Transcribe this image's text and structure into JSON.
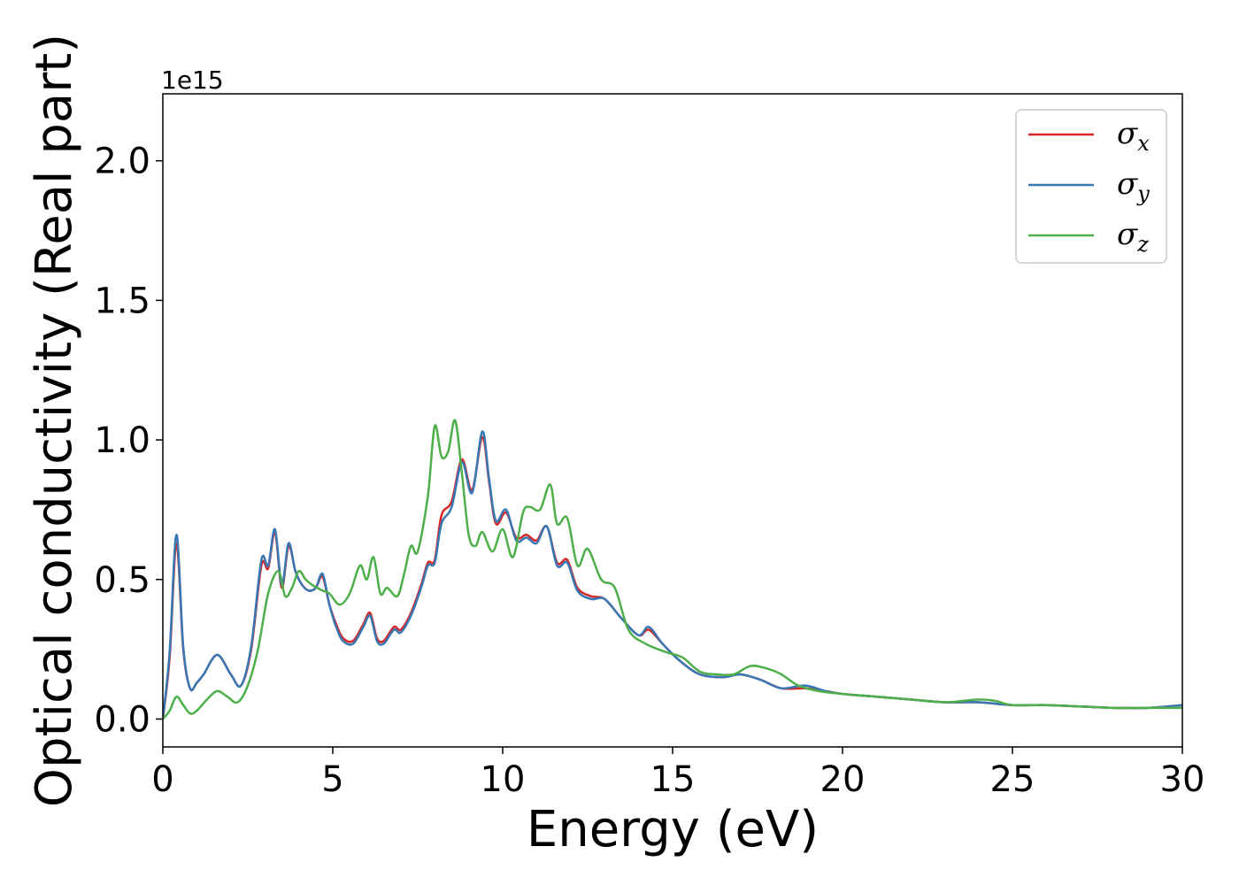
{
  "chart_data": {
    "type": "line",
    "title": "",
    "xlabel": "Energy (eV)",
    "ylabel": "Optical conductivity (Real part)",
    "y_offset_text": "1e15",
    "xlim": [
      0,
      30
    ],
    "ylim": [
      -0.1,
      2.24
    ],
    "xticks": [
      0,
      5,
      10,
      15,
      20,
      25,
      30
    ],
    "xtick_labels": [
      "0",
      "5",
      "10",
      "15",
      "20",
      "25",
      "30"
    ],
    "yticks": [
      0.0,
      0.5,
      1.0,
      1.5,
      2.0
    ],
    "ytick_labels": [
      "0.0",
      "0.5",
      "1.0",
      "1.5",
      "2.0"
    ],
    "grid": false,
    "legend_position": "top-right",
    "series": [
      {
        "name": "σx",
        "legend_symbol": "σ",
        "legend_subscript": "x",
        "color": "#d62728",
        "x": [
          0,
          0.2,
          0.4,
          0.6,
          0.8,
          1.0,
          1.2,
          1.6,
          2.0,
          2.3,
          2.6,
          2.9,
          3.1,
          3.3,
          3.5,
          3.7,
          3.9,
          4.1,
          4.3,
          4.5,
          4.7,
          4.9,
          5.1,
          5.3,
          5.6,
          5.9,
          6.1,
          6.3,
          6.5,
          6.8,
          7.0,
          7.3,
          7.6,
          7.8,
          8.0,
          8.2,
          8.5,
          8.8,
          9.1,
          9.4,
          9.6,
          9.8,
          10.1,
          10.4,
          10.7,
          11.0,
          11.3,
          11.6,
          11.9,
          12.2,
          12.6,
          13.0,
          13.5,
          14.0,
          14.3,
          14.7,
          15.2,
          15.8,
          16.5,
          17.0,
          17.6,
          18.2,
          18.9,
          19.5,
          20.0,
          21.0,
          22.0,
          23.0,
          24.0,
          25.0,
          26.0,
          27.0,
          28.0,
          29.0,
          30.0
        ],
        "y": [
          0.0,
          0.22,
          0.63,
          0.25,
          0.11,
          0.13,
          0.16,
          0.23,
          0.16,
          0.12,
          0.25,
          0.55,
          0.54,
          0.67,
          0.47,
          0.62,
          0.53,
          0.48,
          0.46,
          0.47,
          0.51,
          0.41,
          0.34,
          0.29,
          0.28,
          0.34,
          0.38,
          0.29,
          0.28,
          0.33,
          0.32,
          0.38,
          0.48,
          0.56,
          0.57,
          0.73,
          0.78,
          0.93,
          0.82,
          1.01,
          0.85,
          0.7,
          0.74,
          0.65,
          0.66,
          0.64,
          0.69,
          0.56,
          0.57,
          0.47,
          0.44,
          0.43,
          0.36,
          0.3,
          0.32,
          0.27,
          0.21,
          0.16,
          0.15,
          0.16,
          0.14,
          0.11,
          0.11,
          0.1,
          0.09,
          0.08,
          0.07,
          0.06,
          0.06,
          0.05,
          0.05,
          0.045,
          0.04,
          0.04,
          0.05
        ]
      },
      {
        "name": "σy",
        "legend_symbol": "σ",
        "legend_subscript": "y",
        "color": "#3777b4",
        "x": [
          0,
          0.2,
          0.4,
          0.6,
          0.8,
          1.0,
          1.2,
          1.6,
          2.0,
          2.3,
          2.6,
          2.9,
          3.1,
          3.3,
          3.5,
          3.7,
          3.9,
          4.1,
          4.3,
          4.5,
          4.7,
          4.9,
          5.1,
          5.3,
          5.6,
          5.9,
          6.1,
          6.3,
          6.5,
          6.8,
          7.0,
          7.3,
          7.6,
          7.8,
          8.0,
          8.2,
          8.5,
          8.8,
          9.1,
          9.4,
          9.6,
          9.8,
          10.1,
          10.4,
          10.7,
          11.0,
          11.3,
          11.6,
          11.9,
          12.2,
          12.6,
          13.0,
          13.5,
          14.0,
          14.3,
          14.7,
          15.2,
          15.8,
          16.5,
          17.0,
          17.6,
          18.2,
          18.9,
          19.5,
          20.0,
          21.0,
          22.0,
          23.0,
          24.0,
          25.0,
          26.0,
          27.0,
          28.0,
          29.0,
          30.0
        ],
        "y": [
          0.0,
          0.24,
          0.66,
          0.26,
          0.11,
          0.13,
          0.16,
          0.23,
          0.16,
          0.12,
          0.26,
          0.57,
          0.55,
          0.68,
          0.48,
          0.63,
          0.53,
          0.48,
          0.46,
          0.47,
          0.52,
          0.41,
          0.33,
          0.28,
          0.27,
          0.33,
          0.37,
          0.28,
          0.27,
          0.32,
          0.31,
          0.37,
          0.47,
          0.55,
          0.56,
          0.7,
          0.76,
          0.92,
          0.81,
          1.03,
          0.86,
          0.71,
          0.75,
          0.64,
          0.65,
          0.63,
          0.69,
          0.55,
          0.56,
          0.46,
          0.43,
          0.43,
          0.36,
          0.3,
          0.33,
          0.27,
          0.21,
          0.16,
          0.15,
          0.16,
          0.14,
          0.11,
          0.12,
          0.1,
          0.09,
          0.08,
          0.07,
          0.06,
          0.06,
          0.05,
          0.05,
          0.045,
          0.04,
          0.04,
          0.05
        ]
      },
      {
        "name": "σz",
        "legend_symbol": "σ",
        "legend_subscript": "z",
        "color": "#4daf4a",
        "x": [
          0,
          0.2,
          0.4,
          0.6,
          0.8,
          1.0,
          1.3,
          1.6,
          1.9,
          2.2,
          2.5,
          2.8,
          3.1,
          3.4,
          3.6,
          3.8,
          4.0,
          4.2,
          4.4,
          4.7,
          4.9,
          5.2,
          5.5,
          5.8,
          6.0,
          6.2,
          6.4,
          6.6,
          6.9,
          7.1,
          7.3,
          7.5,
          7.8,
          8.0,
          8.2,
          8.4,
          8.6,
          8.8,
          9.0,
          9.2,
          9.4,
          9.7,
          10.0,
          10.3,
          10.6,
          10.8,
          11.1,
          11.4,
          11.6,
          11.9,
          12.2,
          12.5,
          12.9,
          13.3,
          13.7,
          14.2,
          14.8,
          15.3,
          15.8,
          16.3,
          16.8,
          17.3,
          17.8,
          18.2,
          18.7,
          19.3,
          20.0,
          21.0,
          22.0,
          23.0,
          24.0,
          24.5,
          25.0,
          26.0,
          27.0,
          28.0,
          29.0,
          30.0
        ],
        "y": [
          0.0,
          0.03,
          0.08,
          0.05,
          0.02,
          0.03,
          0.07,
          0.1,
          0.08,
          0.06,
          0.12,
          0.25,
          0.45,
          0.53,
          0.44,
          0.47,
          0.53,
          0.5,
          0.48,
          0.46,
          0.45,
          0.41,
          0.45,
          0.55,
          0.5,
          0.58,
          0.45,
          0.47,
          0.44,
          0.52,
          0.62,
          0.6,
          0.8,
          1.05,
          0.94,
          0.96,
          1.07,
          0.88,
          0.66,
          0.62,
          0.67,
          0.6,
          0.68,
          0.58,
          0.74,
          0.76,
          0.75,
          0.84,
          0.7,
          0.72,
          0.55,
          0.61,
          0.5,
          0.47,
          0.32,
          0.27,
          0.24,
          0.22,
          0.17,
          0.16,
          0.16,
          0.19,
          0.18,
          0.16,
          0.12,
          0.1,
          0.09,
          0.08,
          0.07,
          0.06,
          0.07,
          0.065,
          0.05,
          0.05,
          0.045,
          0.04,
          0.04,
          0.04
        ]
      }
    ]
  }
}
